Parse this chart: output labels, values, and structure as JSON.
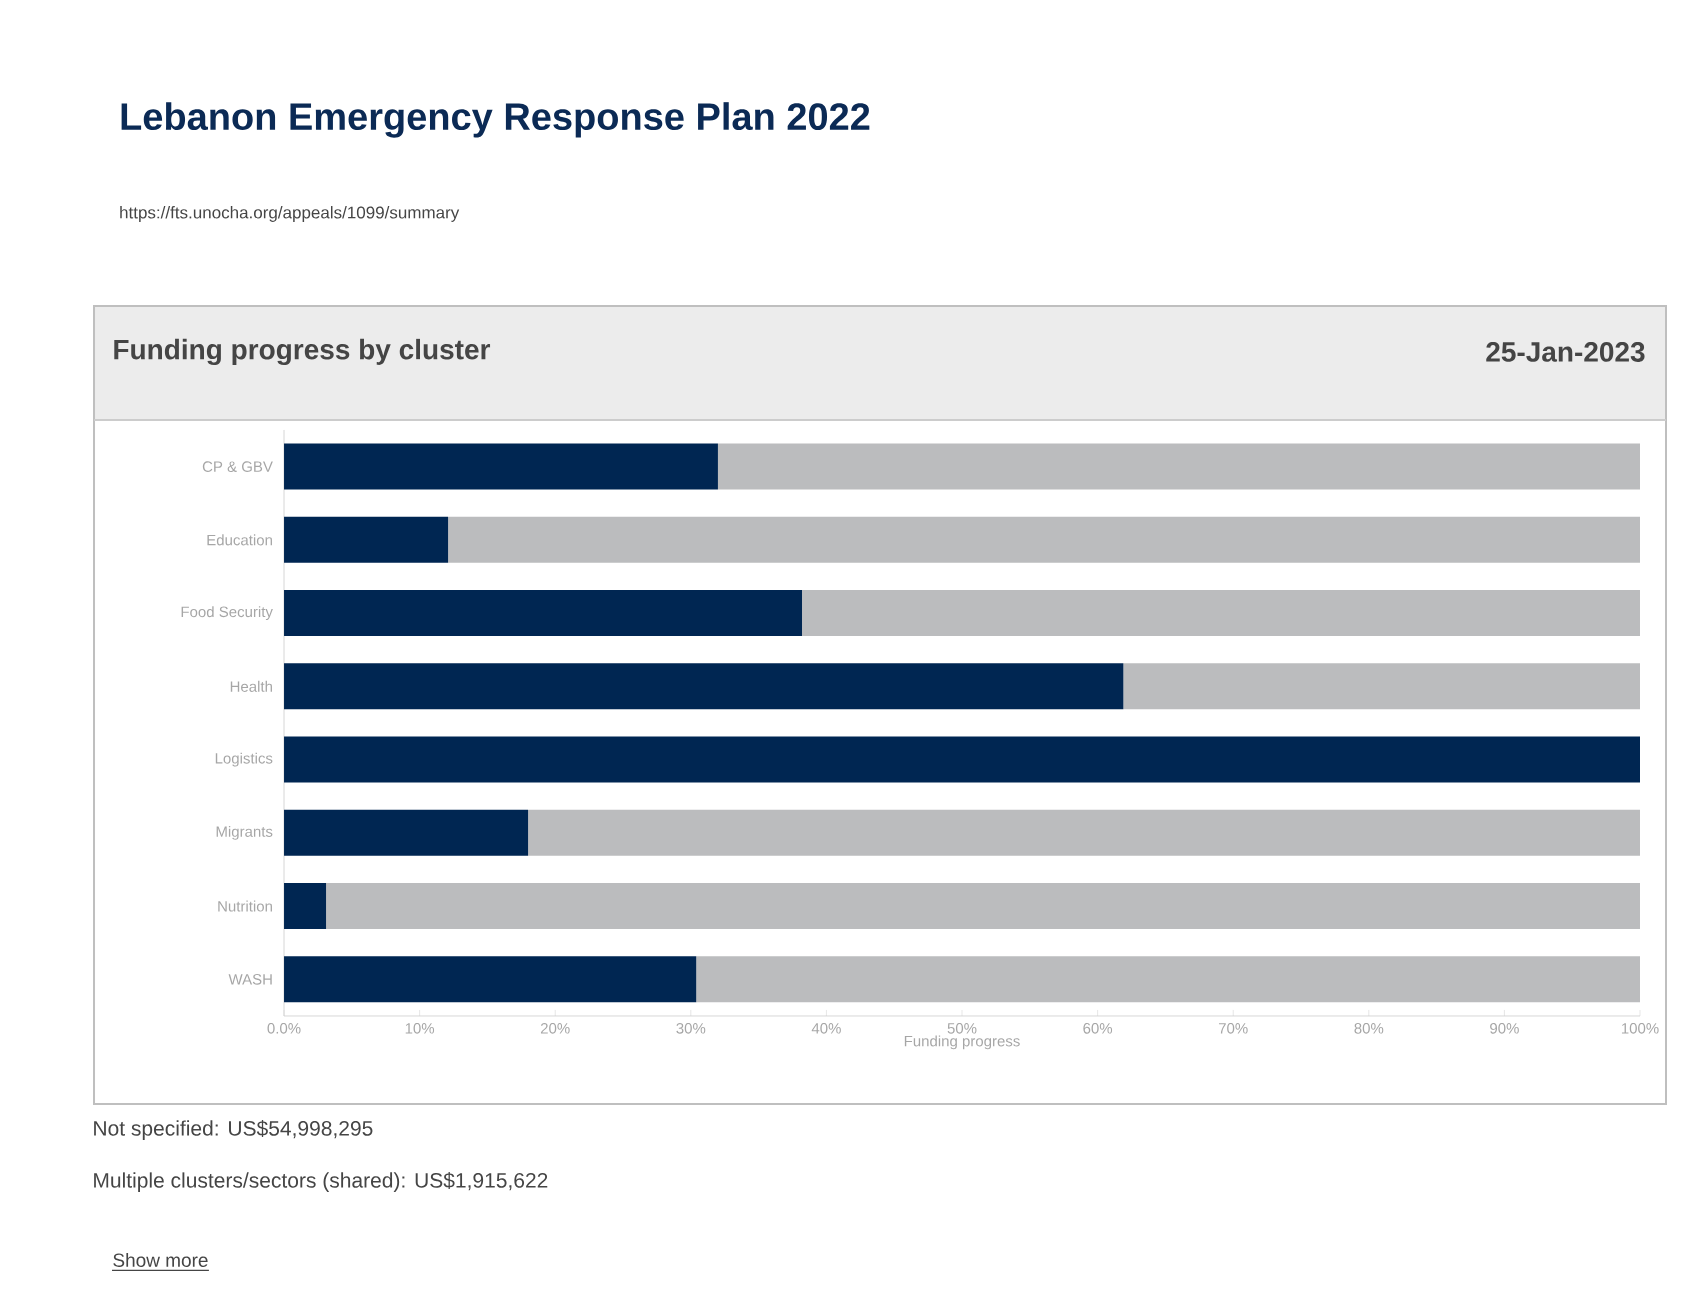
{
  "chart_data": {
    "type": "bar",
    "orientation": "horizontal",
    "stacked": true,
    "title": "Lebanon Emergency Response Plan 2022",
    "subtitle": "https://fts.unocha.org/appeals/1099/summary",
    "xlabel": "Funding progress",
    "categories": [
      "CP & GBV",
      "Education",
      "Food Security",
      "Health",
      "Logistics",
      "Migrants",
      "Nutrition",
      "WASH"
    ],
    "series": [
      {
        "color": "#002652",
        "values": [
          32.0,
          12.1,
          38.2,
          61.9,
          100,
          18.0,
          3.1,
          30.4
        ]
      },
      {
        "color": "#bbbcbe",
        "values": [
          68.0,
          87.9,
          61.8,
          38.1,
          0,
          82.0,
          96.9,
          69.6
        ]
      }
    ],
    "xlim": [
      0,
      100
    ],
    "xticks": [
      {
        "value": 0,
        "label": "0.0%"
      },
      {
        "value": 10,
        "label": "10%"
      },
      {
        "value": 20,
        "label": "20%"
      },
      {
        "value": 30,
        "label": "30%"
      },
      {
        "value": 40,
        "label": "40%"
      },
      {
        "value": 50,
        "label": "50%"
      },
      {
        "value": 60,
        "label": "60%"
      },
      {
        "value": 70,
        "label": "70%"
      },
      {
        "value": 80,
        "label": "80%"
      },
      {
        "value": 90,
        "label": "90%"
      },
      {
        "value": 100,
        "label": "100%"
      }
    ],
    "annotations": [
      "Funding progress by cluster",
      "25-Jan-2023",
      "Not specified: US$54,998,295",
      "Multiple clusters/sectors (shared): US$1,915,622",
      "Show more"
    ]
  }
}
